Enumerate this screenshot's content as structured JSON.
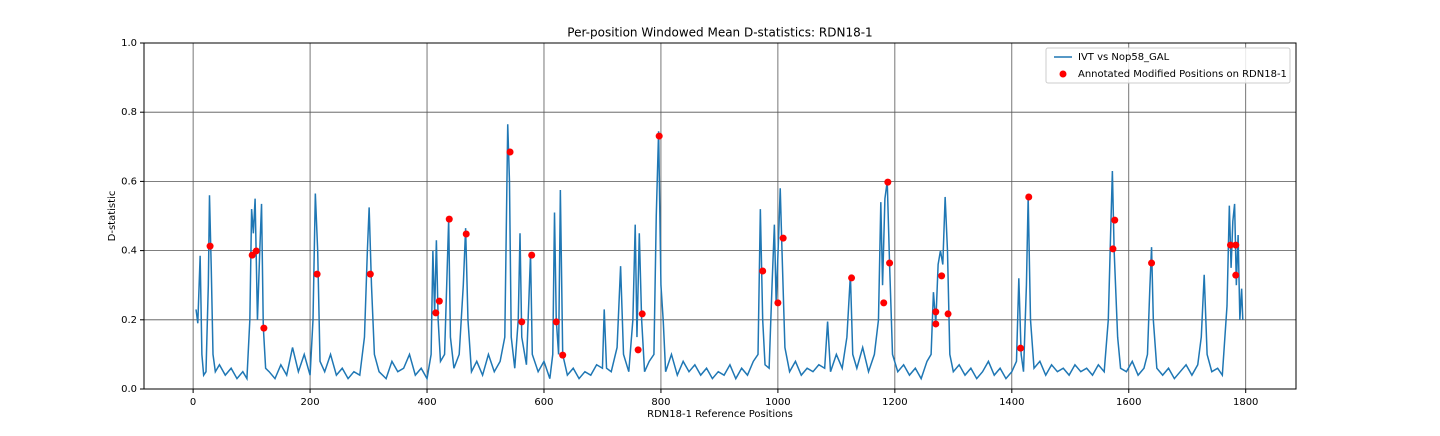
{
  "chart_data": {
    "type": "line",
    "title": "Per-position Windowed Mean D-statistics: RDN18-1",
    "x_label": "RDN18-1 Reference Positions",
    "y_label": "D-statistic",
    "xlim": [
      -84,
      1886
    ],
    "ylim": [
      0,
      1
    ],
    "xticks": [
      0,
      200,
      400,
      600,
      800,
      1000,
      1200,
      1400,
      1600,
      1800
    ],
    "yticks": [
      {
        "value": 0,
        "label": "0.0"
      },
      0.2,
      0.4,
      0.6,
      0.8,
      {
        "value": 1,
        "label": "1.0"
      }
    ],
    "grid": true,
    "legend": "upper right",
    "series": [
      {
        "name": "IVT vs Nop58_GAL",
        "type": "line",
        "color": "#1f77b4",
        "x": [
          5,
          8,
          12,
          15,
          18,
          22,
          26,
          28,
          31,
          34,
          38,
          45,
          55,
          65,
          75,
          85,
          92,
          97,
          100,
          103,
          106,
          110,
          114,
          117,
          120,
          124,
          130,
          140,
          150,
          160,
          170,
          180,
          190,
          200,
          205,
          209,
          213,
          217,
          225,
          235,
          245,
          255,
          265,
          275,
          285,
          293,
          298,
          301,
          305,
          310,
          318,
          330,
          340,
          350,
          360,
          370,
          380,
          390,
          400,
          407,
          410,
          413,
          416,
          419,
          423,
          430,
          434,
          437,
          440,
          446,
          455,
          462,
          466,
          470,
          476,
          485,
          495,
          505,
          515,
          525,
          533,
          538,
          541,
          544,
          550,
          556,
          559,
          562,
          570,
          574,
          577,
          580,
          590,
          600,
          610,
          615,
          618,
          621,
          625,
          628,
          632,
          640,
          650,
          660,
          670,
          680,
          690,
          700,
          703,
          707,
          715,
          725,
          731,
          736,
          745,
          752,
          756,
          759,
          763,
          767,
          772,
          780,
          788,
          792,
          796,
          800,
          804,
          808,
          818,
          828,
          838,
          848,
          858,
          868,
          878,
          888,
          898,
          908,
          918,
          928,
          938,
          948,
          958,
          966,
          970,
          974,
          978,
          985,
          990,
          994,
          997,
          1001,
          1004,
          1007,
          1012,
          1020,
          1030,
          1040,
          1050,
          1060,
          1070,
          1080,
          1085,
          1090,
          1100,
          1110,
          1118,
          1124,
          1128,
          1135,
          1145,
          1155,
          1165,
          1172,
          1176,
          1179,
          1183,
          1187,
          1191,
          1196,
          1205,
          1215,
          1225,
          1235,
          1245,
          1255,
          1262,
          1266,
          1270,
          1274,
          1278,
          1282,
          1286,
          1290,
          1294,
          1300,
          1310,
          1320,
          1330,
          1340,
          1350,
          1360,
          1370,
          1380,
          1390,
          1400,
          1408,
          1412,
          1416,
          1420,
          1425,
          1428,
          1432,
          1438,
          1448,
          1458,
          1468,
          1478,
          1488,
          1498,
          1508,
          1518,
          1528,
          1538,
          1548,
          1558,
          1565,
          1569,
          1572,
          1575,
          1578,
          1581,
          1586,
          1596,
          1606,
          1616,
          1626,
          1632,
          1636,
          1639,
          1642,
          1648,
          1658,
          1668,
          1678,
          1688,
          1698,
          1708,
          1718,
          1724,
          1729,
          1734,
          1742,
          1752,
          1760,
          1768,
          1772,
          1775,
          1778,
          1781,
          1784,
          1787,
          1790,
          1793,
          1795
        ],
        "values": [
          0.23,
          0.19,
          0.385,
          0.1,
          0.04,
          0.05,
          0.3,
          0.56,
          0.35,
          0.1,
          0.05,
          0.07,
          0.04,
          0.06,
          0.03,
          0.05,
          0.03,
          0.2,
          0.52,
          0.45,
          0.55,
          0.2,
          0.4,
          0.535,
          0.18,
          0.06,
          0.05,
          0.03,
          0.07,
          0.04,
          0.12,
          0.05,
          0.1,
          0.04,
          0.2,
          0.565,
          0.4,
          0.08,
          0.05,
          0.1,
          0.04,
          0.06,
          0.03,
          0.05,
          0.04,
          0.15,
          0.4,
          0.525,
          0.3,
          0.1,
          0.05,
          0.03,
          0.08,
          0.05,
          0.06,
          0.1,
          0.04,
          0.06,
          0.03,
          0.1,
          0.4,
          0.22,
          0.43,
          0.2,
          0.08,
          0.1,
          0.32,
          0.49,
          0.15,
          0.06,
          0.1,
          0.3,
          0.465,
          0.2,
          0.05,
          0.08,
          0.04,
          0.1,
          0.05,
          0.08,
          0.15,
          0.765,
          0.6,
          0.15,
          0.06,
          0.2,
          0.45,
          0.15,
          0.07,
          0.25,
          0.39,
          0.1,
          0.05,
          0.08,
          0.03,
          0.1,
          0.51,
          0.2,
          0.1,
          0.575,
          0.1,
          0.04,
          0.06,
          0.03,
          0.05,
          0.04,
          0.07,
          0.06,
          0.23,
          0.06,
          0.05,
          0.12,
          0.355,
          0.1,
          0.05,
          0.2,
          0.475,
          0.15,
          0.45,
          0.2,
          0.05,
          0.08,
          0.1,
          0.5,
          0.745,
          0.3,
          0.195,
          0.05,
          0.1,
          0.04,
          0.08,
          0.05,
          0.07,
          0.04,
          0.06,
          0.03,
          0.05,
          0.04,
          0.07,
          0.03,
          0.06,
          0.04,
          0.08,
          0.1,
          0.52,
          0.2,
          0.07,
          0.06,
          0.3,
          0.475,
          0.25,
          0.43,
          0.58,
          0.4,
          0.12,
          0.05,
          0.08,
          0.04,
          0.06,
          0.05,
          0.07,
          0.06,
          0.195,
          0.05,
          0.1,
          0.06,
          0.15,
          0.33,
          0.1,
          0.06,
          0.12,
          0.05,
          0.1,
          0.2,
          0.54,
          0.3,
          0.55,
          0.6,
          0.36,
          0.1,
          0.05,
          0.07,
          0.04,
          0.06,
          0.03,
          0.08,
          0.1,
          0.28,
          0.19,
          0.36,
          0.4,
          0.36,
          0.555,
          0.4,
          0.1,
          0.05,
          0.07,
          0.04,
          0.06,
          0.03,
          0.05,
          0.08,
          0.04,
          0.06,
          0.03,
          0.05,
          0.08,
          0.32,
          0.1,
          0.05,
          0.3,
          0.555,
          0.2,
          0.06,
          0.08,
          0.04,
          0.07,
          0.05,
          0.06,
          0.04,
          0.07,
          0.05,
          0.06,
          0.04,
          0.07,
          0.05,
          0.2,
          0.45,
          0.63,
          0.4,
          0.275,
          0.15,
          0.06,
          0.05,
          0.08,
          0.04,
          0.06,
          0.1,
          0.29,
          0.41,
          0.2,
          0.06,
          0.04,
          0.06,
          0.03,
          0.05,
          0.07,
          0.04,
          0.07,
          0.15,
          0.33,
          0.1,
          0.05,
          0.06,
          0.04,
          0.24,
          0.53,
          0.35,
          0.485,
          0.535,
          0.3,
          0.445,
          0.2,
          0.29,
          0.2
        ]
      },
      {
        "name": "Annotated Modified Positions on RDN18-1",
        "type": "scatter",
        "color": "#ff0000",
        "x": [
          29,
          101,
          108,
          121,
          212,
          303,
          415,
          421,
          438,
          467,
          542,
          562,
          579,
          621,
          632,
          761,
          768,
          797,
          974,
          1000,
          1009,
          1126,
          1181,
          1188,
          1191,
          1270,
          1270,
          1280,
          1291,
          1415,
          1429,
          1573,
          1576,
          1639,
          1774,
          1783,
          1783
        ],
        "values": [
          0.413,
          0.387,
          0.399,
          0.176,
          0.332,
          0.332,
          0.22,
          0.254,
          0.491,
          0.448,
          0.685,
          0.194,
          0.387,
          0.194,
          0.098,
          0.113,
          0.217,
          0.731,
          0.341,
          0.249,
          0.436,
          0.321,
          0.249,
          0.598,
          0.364,
          0.223,
          0.188,
          0.327,
          0.217,
          0.118,
          0.555,
          0.405,
          0.488,
          0.364,
          0.416,
          0.416,
          0.329
        ]
      }
    ]
  }
}
